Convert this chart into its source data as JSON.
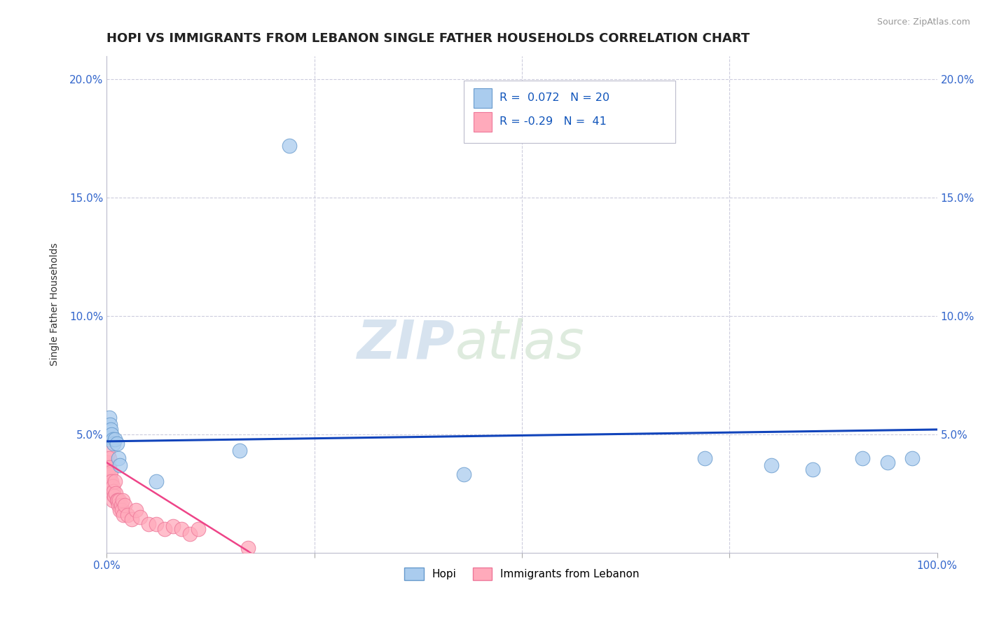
{
  "title": "HOPI VS IMMIGRANTS FROM LEBANON SINGLE FATHER HOUSEHOLDS CORRELATION CHART",
  "source": "Source: ZipAtlas.com",
  "ylabel": "Single Father Households",
  "xlim": [
    0.0,
    1.0
  ],
  "ylim": [
    0.0,
    0.21
  ],
  "yticks": [
    0.0,
    0.05,
    0.1,
    0.15,
    0.2
  ],
  "xticks": [
    0.0,
    0.25,
    0.5,
    0.75,
    1.0
  ],
  "hopi_x": [
    0.003,
    0.004,
    0.005,
    0.006,
    0.007,
    0.008,
    0.01,
    0.012,
    0.014,
    0.016,
    0.06,
    0.22,
    0.72,
    0.8,
    0.85,
    0.91,
    0.94,
    0.97,
    0.43,
    0.16
  ],
  "hopi_y": [
    0.057,
    0.054,
    0.052,
    0.05,
    0.048,
    0.046,
    0.048,
    0.046,
    0.04,
    0.037,
    0.03,
    0.172,
    0.04,
    0.037,
    0.035,
    0.04,
    0.038,
    0.04,
    0.033,
    0.043
  ],
  "lebanon_x": [
    0.001,
    0.001,
    0.002,
    0.002,
    0.002,
    0.003,
    0.003,
    0.004,
    0.004,
    0.005,
    0.005,
    0.006,
    0.006,
    0.007,
    0.007,
    0.008,
    0.009,
    0.01,
    0.011,
    0.012,
    0.013,
    0.014,
    0.015,
    0.016,
    0.017,
    0.018,
    0.019,
    0.02,
    0.022,
    0.025,
    0.03,
    0.035,
    0.04,
    0.05,
    0.06,
    0.07,
    0.08,
    0.09,
    0.1,
    0.11,
    0.17
  ],
  "lebanon_y": [
    0.038,
    0.042,
    0.035,
    0.032,
    0.028,
    0.04,
    0.036,
    0.033,
    0.03,
    0.034,
    0.028,
    0.03,
    0.025,
    0.028,
    0.022,
    0.026,
    0.024,
    0.03,
    0.025,
    0.022,
    0.022,
    0.02,
    0.022,
    0.018,
    0.02,
    0.018,
    0.022,
    0.016,
    0.02,
    0.016,
    0.014,
    0.018,
    0.015,
    0.012,
    0.012,
    0.01,
    0.011,
    0.01,
    0.008,
    0.01,
    0.002
  ],
  "hopi_color": "#aaccee",
  "hopi_edge_color": "#6699cc",
  "lebanon_color": "#ffaabb",
  "lebanon_edge_color": "#ee7799",
  "hopi_trend_color": "#1144bb",
  "lebanon_trend_color": "#ee4488",
  "hopi_R": 0.072,
  "hopi_N": 20,
  "lebanon_R": -0.29,
  "lebanon_N": 41,
  "legend_R_color": "#1155bb",
  "watermark_zip": "ZIP",
  "watermark_atlas": "atlas",
  "background_color": "#ffffff",
  "grid_color": "#ccccdd",
  "title_fontsize": 13,
  "axis_label_fontsize": 10,
  "tick_color": "#3366cc"
}
